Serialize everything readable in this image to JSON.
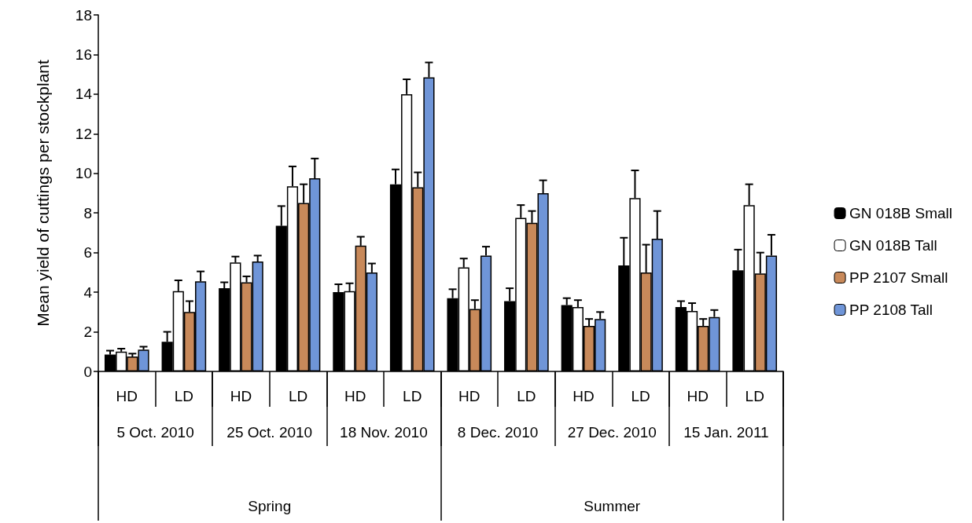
{
  "chart_data": {
    "type": "bar",
    "ylabel": "Mean yield of cuttings per stockplant",
    "categories": [
      "HD",
      "LD",
      "HD",
      "LD",
      "HD",
      "LD",
      "HD",
      "LD",
      "HD",
      "LD",
      "HD",
      "LD"
    ],
    "annotations": [
      "5 Oct. 2010",
      "25 Oct. 2010",
      "18 Nov. 2010",
      "8 Dec. 2010",
      "27 Dec. 2010",
      "15 Jan. 2011",
      "Spring",
      "Summer"
    ],
    "series": [
      {
        "name": "GN 018B Small",
        "color": "#000000",
        "values": [
          0.85,
          1.5,
          4.2,
          7.35,
          4.0,
          9.45,
          3.7,
          3.55,
          3.35,
          5.35,
          3.25,
          5.1
        ],
        "errors": [
          [
            0.85,
            1.05
          ],
          [
            1.5,
            2.0
          ],
          [
            4.2,
            4.5
          ],
          [
            7.35,
            8.35
          ],
          [
            4.0,
            4.4
          ],
          [
            9.45,
            10.2
          ],
          [
            3.7,
            4.15
          ],
          [
            3.55,
            4.2
          ],
          [
            3.35,
            3.7
          ],
          [
            5.35,
            6.75
          ],
          [
            3.25,
            3.55
          ],
          [
            5.1,
            6.15
          ]
        ]
      },
      {
        "name": "GN 018B Tall",
        "color": "#ffffff",
        "values": [
          1.0,
          4.05,
          5.5,
          9.35,
          4.05,
          14.0,
          5.25,
          7.75,
          3.25,
          8.75,
          3.05,
          8.4
        ],
        "errors": [
          [
            1.0,
            1.15
          ],
          [
            4.05,
            4.6
          ],
          [
            5.5,
            5.8
          ],
          [
            9.35,
            10.35
          ],
          [
            4.05,
            4.45
          ],
          [
            14.0,
            14.75
          ],
          [
            5.25,
            5.7
          ],
          [
            7.75,
            8.4
          ],
          [
            3.25,
            3.6
          ],
          [
            8.75,
            10.15
          ],
          [
            3.05,
            3.45
          ],
          [
            8.4,
            9.45
          ]
        ]
      },
      {
        "name": "PP 2107 Small",
        "color": "#c8895a",
        "values": [
          0.75,
          3.0,
          4.5,
          8.5,
          6.35,
          9.3,
          3.15,
          7.5,
          2.3,
          5.0,
          2.3,
          4.95
        ],
        "errors": [
          [
            0.75,
            0.9
          ],
          [
            3.0,
            3.55
          ],
          [
            4.5,
            4.8
          ],
          [
            8.5,
            9.45
          ],
          [
            6.35,
            6.8
          ],
          [
            9.3,
            10.05
          ],
          [
            3.15,
            3.6
          ],
          [
            7.5,
            8.1
          ],
          [
            2.3,
            2.65
          ],
          [
            5.0,
            6.4
          ],
          [
            2.3,
            2.65
          ],
          [
            4.95,
            6.0
          ]
        ]
      },
      {
        "name": "PP 2108 Tall",
        "color": "#6f95d8",
        "values": [
          1.1,
          4.55,
          5.55,
          9.75,
          5.0,
          14.85,
          5.85,
          9.0,
          2.65,
          6.7,
          2.75,
          5.85
        ],
        "errors": [
          [
            1.1,
            1.25
          ],
          [
            4.55,
            5.05
          ],
          [
            5.55,
            5.85
          ],
          [
            9.75,
            10.75
          ],
          [
            5.0,
            5.45
          ],
          [
            14.85,
            15.6
          ],
          [
            5.85,
            6.3
          ],
          [
            9.0,
            9.65
          ],
          [
            2.65,
            3.0
          ],
          [
            6.7,
            8.1
          ],
          [
            2.75,
            3.1
          ],
          [
            5.85,
            6.9
          ]
        ]
      }
    ],
    "ylim": [
      0,
      18
    ],
    "yticks": [
      0,
      2,
      4,
      6,
      8,
      10,
      12,
      14,
      16,
      18
    ],
    "grid": false,
    "legend": "right"
  }
}
